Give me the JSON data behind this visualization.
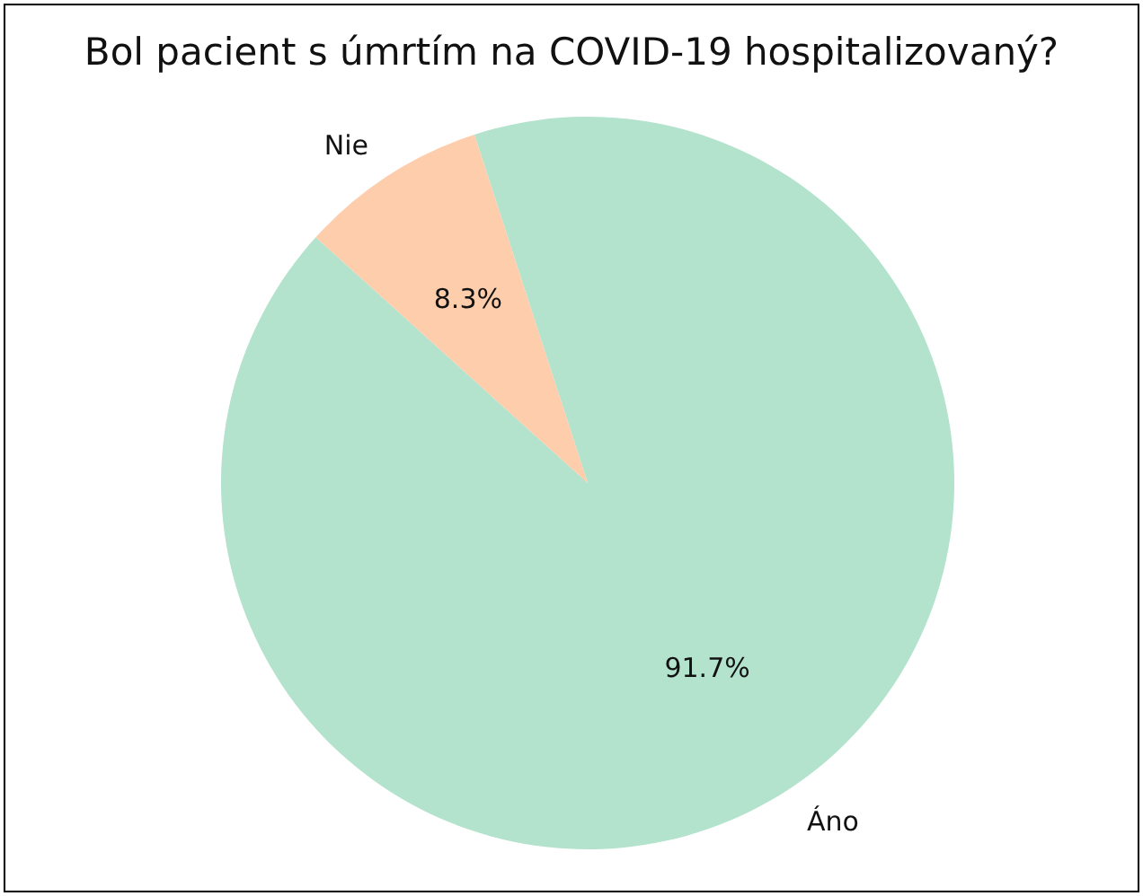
{
  "chart_data": {
    "type": "pie",
    "title": "Bol pacient s úmrtím na COVID-19 hospitalizovaný?",
    "categories": [
      "Áno",
      "Nie"
    ],
    "values": [
      91.7,
      8.3
    ],
    "colors": [
      "#b3e2cd",
      "#fdcdac"
    ],
    "value_labels": [
      "91.7%",
      "8.3%"
    ]
  }
}
